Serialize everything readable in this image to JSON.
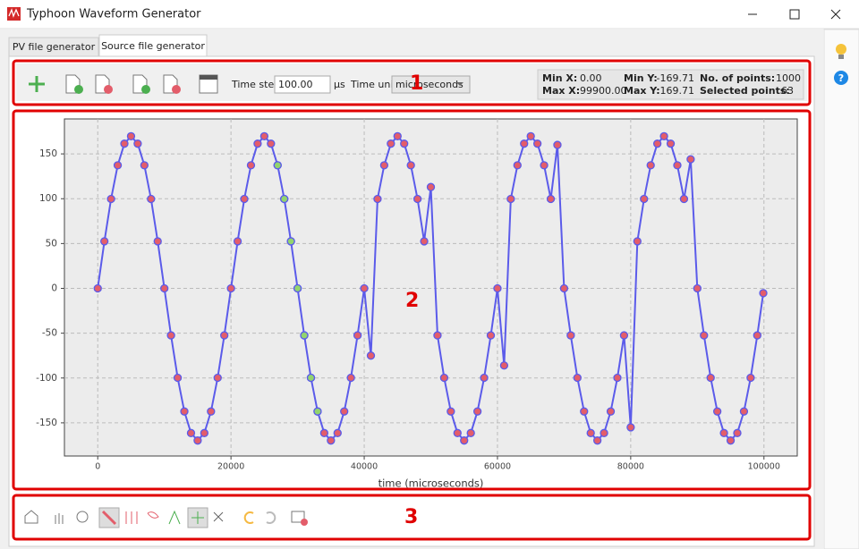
{
  "window": {
    "title": "Typhoon Waveform Generator"
  },
  "tabs": [
    "PV file generator",
    "Source file generator"
  ],
  "toolbar": {
    "time_step_label": "Time step",
    "time_step": "100.00",
    "time_step_unit": "μs",
    "time_unit_label": "Time unit",
    "time_unit": "microseconds"
  },
  "info": {
    "min_x_label": "Min X:",
    "min_x": "0.00",
    "max_x_label": "Max X:",
    "max_x": "99900.00",
    "min_y_label": "Min Y:",
    "min_y": "-169.71",
    "max_y_label": "Max Y:",
    "max_y": "169.71",
    "points_label": "No. of points:",
    "points": "1000",
    "selected_label": "Selected points:",
    "selected": "63"
  },
  "annotations": [
    "1",
    "2",
    "3"
  ],
  "chart_data": {
    "type": "line",
    "xlabel": "time (microseconds)",
    "xlim": [
      -5000,
      105000
    ],
    "xticks": [
      0,
      20000,
      40000,
      60000,
      80000,
      100000
    ],
    "ylim": [
      -187,
      189
    ],
    "yticks": [
      -150,
      -100,
      -50,
      0,
      50,
      100,
      150
    ],
    "grid": true,
    "series": [
      {
        "color": "#5b5bea",
        "marker_color": "#e35d6a",
        "line": true,
        "x": [
          0,
          1000,
          2000,
          3000,
          4000,
          5000,
          6000,
          7000,
          8000,
          9000,
          10000,
          11000,
          12000,
          13000,
          14000,
          15000,
          16000,
          17000,
          18000,
          19000,
          20000,
          21000,
          22000,
          23000,
          24000,
          25000,
          26000,
          27000,
          28000,
          29000,
          30000,
          31000,
          32000,
          33000,
          34000,
          35000,
          36000,
          37000,
          38000,
          39000,
          40000,
          41000,
          42000,
          43000,
          44000,
          45000,
          46000,
          47000,
          48000,
          49000,
          50000,
          51000,
          52000,
          53000,
          54000,
          55000,
          56000,
          57000,
          58000,
          59000,
          60000,
          61000,
          62000,
          63000,
          64000,
          65000,
          66000,
          67000,
          68000,
          69000,
          70000,
          71000,
          72000,
          73000,
          74000,
          75000,
          76000,
          77000,
          78000,
          79000,
          80000,
          81000,
          82000,
          83000,
          84000,
          85000,
          86000,
          87000,
          88000,
          89000,
          90000,
          91000,
          92000,
          93000,
          94000,
          95000,
          96000,
          97000,
          98000,
          99000,
          99900
        ],
        "values": [
          0,
          52.44,
          99.75,
          137.3,
          161.4,
          169.71,
          161.4,
          137.3,
          99.75,
          52.44,
          0,
          -52.44,
          -99.75,
          -137.3,
          -161.4,
          -169.71,
          -161.4,
          -137.3,
          -99.75,
          -52.44,
          0,
          52.44,
          99.75,
          137.3,
          161.4,
          169.71,
          161.4,
          137.3,
          99.75,
          52.44,
          0,
          -52.44,
          -99.75,
          -137.3,
          -161.4,
          -169.71,
          -161.4,
          -137.3,
          -99.75,
          -52.44,
          0,
          -75,
          99.75,
          137.3,
          161.4,
          169.71,
          161.4,
          137.3,
          99.75,
          52.44,
          113,
          -52.44,
          -99.75,
          -137.3,
          -161.4,
          -169.71,
          -161.4,
          -137.3,
          -99.75,
          -52.44,
          0,
          -86,
          99.75,
          137.3,
          161.4,
          169.71,
          161.4,
          137.3,
          99.75,
          160,
          0,
          -52.44,
          -99.75,
          -137.3,
          -161.4,
          -169.71,
          -161.4,
          -137.3,
          -99.75,
          -52.44,
          -155,
          52.44,
          99.75,
          137.3,
          161.4,
          169.71,
          161.4,
          137.3,
          99.75,
          144,
          0,
          -52.44,
          -99.75,
          -137.3,
          -161.4,
          -169.71,
          -161.4,
          -137.3,
          -99.75,
          -52.44,
          -5.33
        ]
      },
      {
        "color": "#5b5bea",
        "marker_color": "#93d46e",
        "line": false,
        "x": [
          27000,
          28000,
          29000,
          30000,
          31000,
          32000,
          33000
        ],
        "values": [
          137.3,
          99.75,
          52.44,
          0,
          -52.44,
          -99.75,
          -137.3
        ]
      }
    ]
  }
}
